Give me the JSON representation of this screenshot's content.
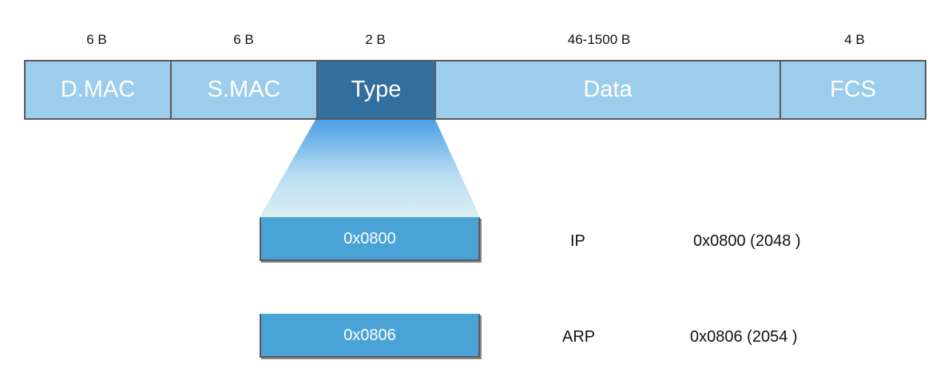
{
  "frame": {
    "fields": [
      {
        "label": "D.MAC",
        "size": "6 B"
      },
      {
        "label": "S.MAC",
        "size": "6 B"
      },
      {
        "label": "Type",
        "size": "2 B"
      },
      {
        "label": "Data",
        "size": "46-1500 B"
      },
      {
        "label": "FCS",
        "size": "4 B"
      }
    ],
    "highlighted_field": "Type"
  },
  "type_values": [
    {
      "code": "0x0800",
      "protocol": "IP",
      "description": "0x0800 (2048 )"
    },
    {
      "code": "0x0806",
      "protocol": "ARP",
      "description": "0x0806 (2054 )"
    }
  ],
  "colors": {
    "field_fill": "#9ccdeb",
    "highlight_fill": "#336f9e",
    "type_box_fill": "#4aa3d6",
    "gradient_top": "#4a9fe8",
    "gradient_bottom": "#d9eff2"
  }
}
